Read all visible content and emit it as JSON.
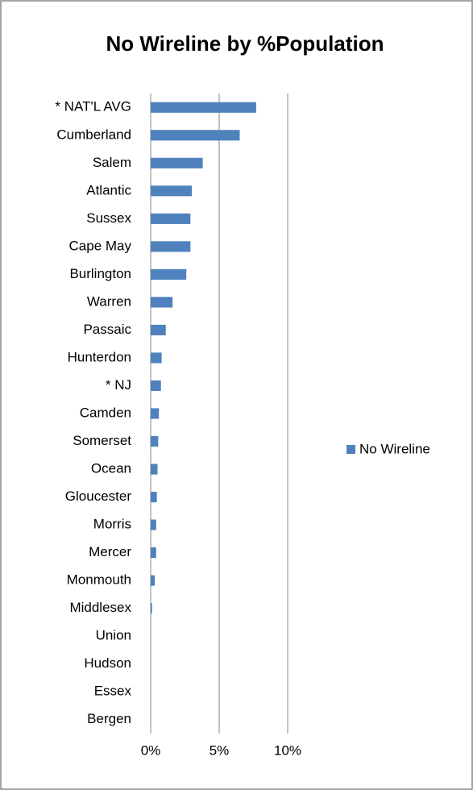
{
  "chart_data": {
    "type": "bar",
    "orientation": "horizontal",
    "title": "No Wireline by %Population",
    "categories": [
      "* NAT'L AVG",
      "Cumberland",
      "Salem",
      "Atlantic",
      "Sussex",
      "Cape May",
      "Burlington",
      "Warren",
      "Passaic",
      "Hunterdon",
      "* NJ",
      "Camden",
      "Somerset",
      "Ocean",
      "Gloucester",
      "Morris",
      "Mercer",
      "Monmouth",
      "Middlesex",
      "Union",
      "Hudson",
      "Essex",
      "Bergen"
    ],
    "series": [
      {
        "name": "No Wireline",
        "color": "#4f81bd",
        "values": [
          7.7,
          6.5,
          3.8,
          3.0,
          2.9,
          2.9,
          2.6,
          1.6,
          1.1,
          0.8,
          0.75,
          0.6,
          0.55,
          0.5,
          0.45,
          0.4,
          0.4,
          0.3,
          0.1,
          0,
          0,
          0,
          0
        ]
      }
    ],
    "xlim": [
      0,
      10
    ],
    "xticks": [
      {
        "value": 0,
        "label": "0%"
      },
      {
        "value": 5,
        "label": "5%"
      },
      {
        "value": 10,
        "label": "10%"
      }
    ],
    "grid": true,
    "legend": "right"
  }
}
